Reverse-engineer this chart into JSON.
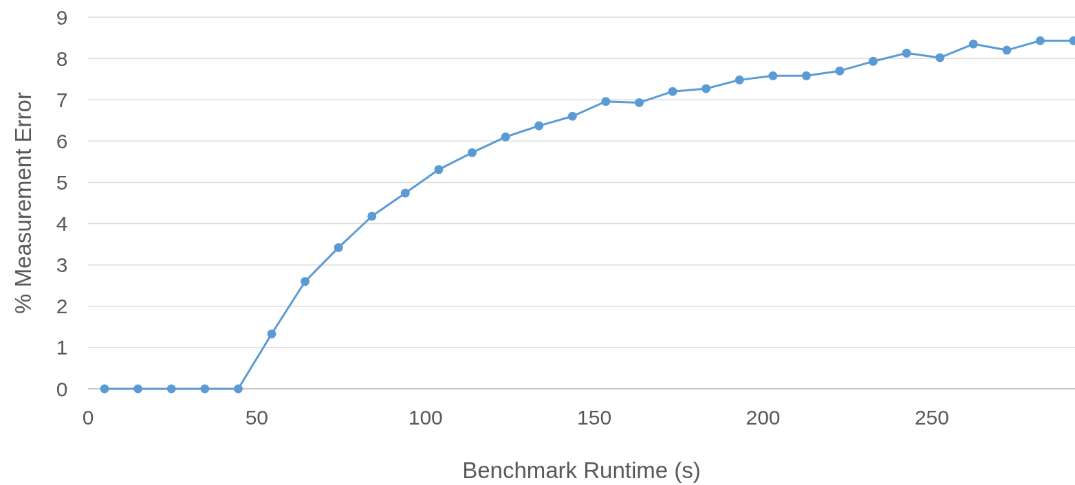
{
  "chart_data": {
    "type": "line",
    "xlabel": "Benchmark Runtime (s)",
    "ylabel": "% Measurement Error",
    "x": [
      4.9,
      14.8,
      24.7,
      34.6,
      44.5,
      54.4,
      64.3,
      74.2,
      84.1,
      94,
      103.9,
      113.8,
      123.7,
      133.6,
      143.5,
      153.4,
      163.3,
      173.2,
      183.1,
      193,
      202.9,
      212.8,
      222.7,
      232.6,
      242.5,
      252.4,
      262.3,
      272.2,
      282.1,
      292
    ],
    "series": [
      {
        "color": "#5b9bd5",
        "values": [
          0,
          0,
          0,
          0,
          0,
          1.33,
          2.6,
          3.42,
          4.18,
          4.74,
          5.31,
          5.72,
          6.1,
          6.37,
          6.6,
          6.96,
          6.93,
          7.2,
          7.27,
          7.48,
          7.58,
          7.58,
          7.7,
          7.93,
          8.13,
          8.02,
          8.35,
          8.2,
          8.43,
          8.43
        ]
      }
    ],
    "xlim": [
      0,
      292.4
    ],
    "xticks": [
      0,
      50,
      100,
      150,
      200,
      250
    ],
    "ylim": [
      0,
      9
    ],
    "yticks": [
      0,
      1,
      2,
      3,
      4,
      5,
      6,
      7,
      8,
      9
    ],
    "grid": "y",
    "marker": "circle",
    "line_style": "solid"
  }
}
